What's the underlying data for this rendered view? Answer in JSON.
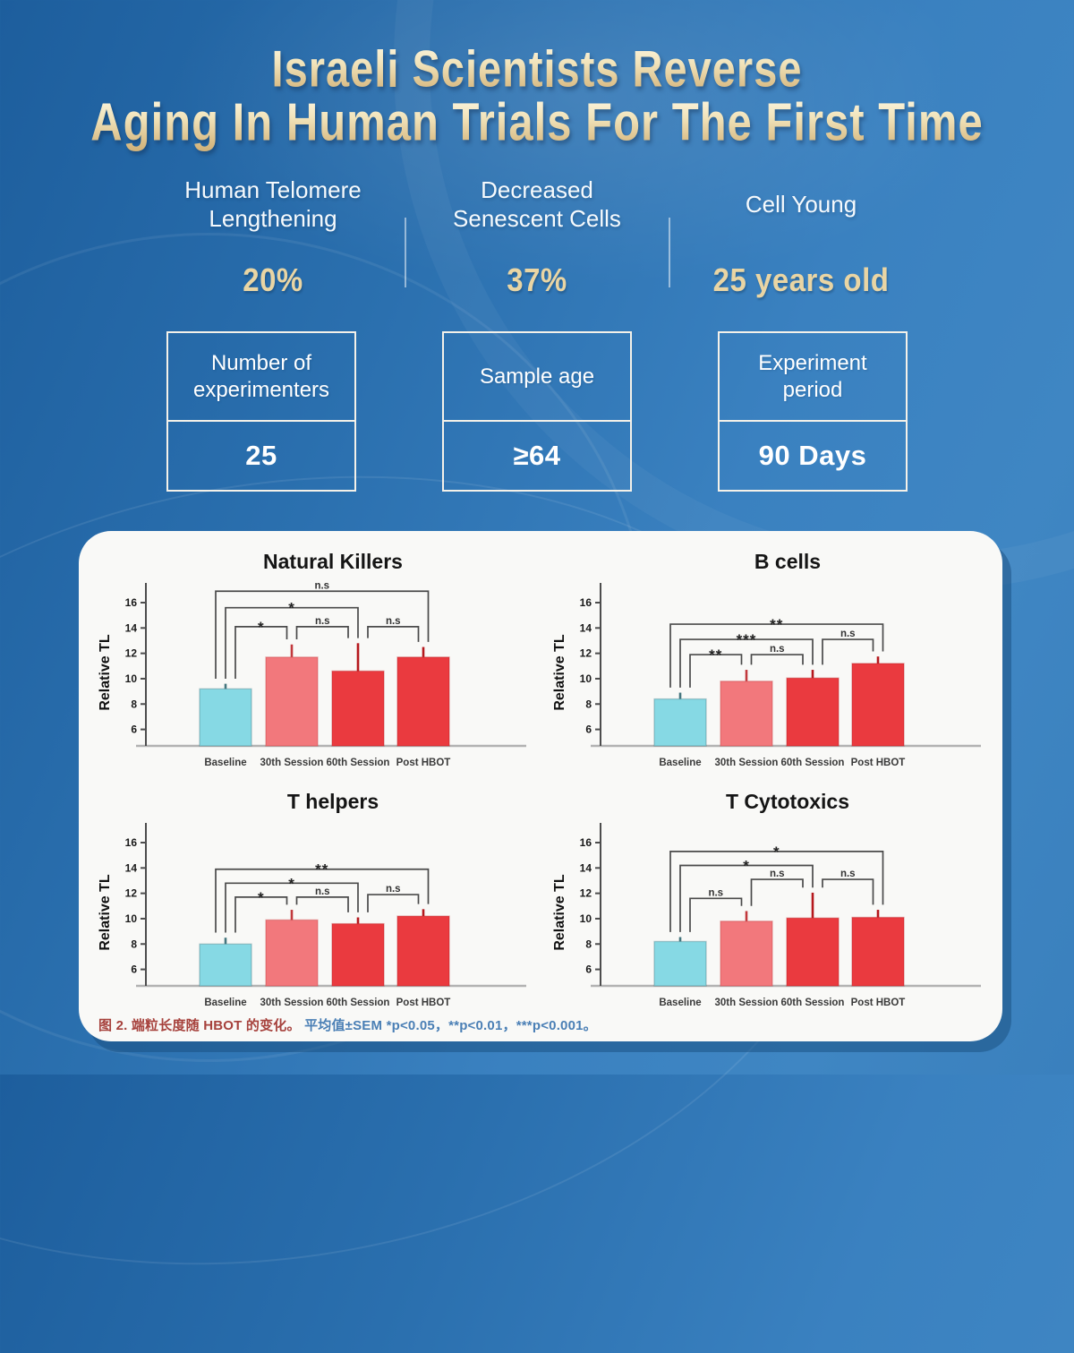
{
  "title": {
    "line1": "Israeli Scientists Reverse",
    "line2": "Aging In Human Trials For The First Time"
  },
  "stats": [
    {
      "label": "Human Telomere\nLengthening",
      "value": "20%"
    },
    {
      "label": "Decreased\nSenescent Cells",
      "value": "37%"
    },
    {
      "label": "Cell Young",
      "value": "25 years old"
    }
  ],
  "info_boxes": [
    {
      "label": "Number of\nexperimenters",
      "value": "25"
    },
    {
      "label": "Sample age",
      "value": "≥64"
    },
    {
      "label": "Experiment\nperiod",
      "value": "90 Days"
    }
  ],
  "caption": {
    "figure": "图 2. 端粒长度随 HBOT 的变化。",
    "stats_note": "平均值±SEM *p<0.05，**p<0.01，***p<0.001。"
  },
  "colors": {
    "background_top_left": "#1d5e9d",
    "background_right": "#3f86c3",
    "title_gold": "#e9d5a4",
    "panel_background": "#f9f9f7",
    "panel_shadow": "#16507e",
    "bar_baseline": "#86d9e4",
    "bar_session_30": "#f2787c",
    "bar_session_60": "#ea3a3f",
    "bar_post_hbot": "#ea3a3f",
    "caption_red": "#a6413c",
    "caption_blue": "#4a7fb5"
  },
  "chart_data": [
    {
      "type": "bar",
      "title": "Natural Killers",
      "ylabel": "Relative TL",
      "categories": [
        "Baseline",
        "30th Session",
        "60th Session",
        "Post HBOT"
      ],
      "values": [
        9.2,
        11.7,
        10.6,
        11.7
      ],
      "errors": [
        0.4,
        1.0,
        2.2,
        0.8
      ],
      "yticks": [
        6,
        8,
        10,
        12,
        14,
        16
      ],
      "ylim": [
        4.7,
        18.4
      ],
      "grid": false,
      "bar_colors": [
        "#86d9e4",
        "#f2787c",
        "#ea3a3f",
        "#ea3a3f"
      ],
      "error_colors": [
        "#44757e",
        "#c2393d",
        "#b5181d",
        "#b5181d"
      ],
      "brackets": [
        {
          "pair": [
            0,
            1
          ],
          "label": "*",
          "y": 14.1
        },
        {
          "pair": [
            1,
            2
          ],
          "label": "n.s",
          "y": 14.1
        },
        {
          "pair": [
            2,
            3
          ],
          "label": "n.s",
          "y": 14.1
        },
        {
          "pair": [
            0,
            2
          ],
          "label": "*",
          "y": 15.6
        },
        {
          "pair": [
            0,
            3
          ],
          "label": "n.s",
          "y": 16.9
        }
      ]
    },
    {
      "type": "bar",
      "title": "B cells",
      "ylabel": "Relative TL",
      "categories": [
        "Baseline",
        "30th Session",
        "60th Session",
        "Post HBOT"
      ],
      "values": [
        8.4,
        9.8,
        10.05,
        11.2
      ],
      "errors": [
        0.5,
        0.9,
        0.65,
        0.55
      ],
      "yticks": [
        6,
        8,
        10,
        12,
        14,
        16
      ],
      "ylim": [
        4.7,
        18.4
      ],
      "grid": false,
      "bar_colors": [
        "#86d9e4",
        "#f2787c",
        "#ea3a3f",
        "#ea3a3f"
      ],
      "error_colors": [
        "#44757e",
        "#c2393d",
        "#b5181d",
        "#b5181d"
      ],
      "brackets": [
        {
          "pair": [
            0,
            1
          ],
          "label": "**",
          "y": 11.9
        },
        {
          "pair": [
            1,
            2
          ],
          "label": "n.s",
          "y": 11.9
        },
        {
          "pair": [
            0,
            2
          ],
          "label": "***",
          "y": 13.1
        },
        {
          "pair": [
            2,
            3
          ],
          "label": "n.s",
          "y": 13.1
        },
        {
          "pair": [
            0,
            3
          ],
          "label": "**",
          "y": 14.3
        }
      ]
    },
    {
      "type": "bar",
      "title": "T helpers",
      "ylabel": "Relative TL",
      "categories": [
        "Baseline",
        "30th Session",
        "60th Session",
        "Post HBOT"
      ],
      "values": [
        8.0,
        9.9,
        9.6,
        10.2
      ],
      "errors": [
        0.5,
        0.8,
        0.5,
        0.55
      ],
      "yticks": [
        6,
        8,
        10,
        12,
        14,
        16
      ],
      "ylim": [
        4.7,
        18.4
      ],
      "grid": false,
      "bar_colors": [
        "#86d9e4",
        "#f2787c",
        "#ea3a3f",
        "#ea3a3f"
      ],
      "error_colors": [
        "#44757e",
        "#c2393d",
        "#b5181d",
        "#b5181d"
      ],
      "brackets": [
        {
          "pair": [
            0,
            1
          ],
          "label": "*",
          "y": 11.7
        },
        {
          "pair": [
            1,
            2
          ],
          "label": "n.s",
          "y": 11.7
        },
        {
          "pair": [
            2,
            3
          ],
          "label": "n.s",
          "y": 11.9
        },
        {
          "pair": [
            0,
            2
          ],
          "label": "*",
          "y": 12.8
        },
        {
          "pair": [
            0,
            3
          ],
          "label": "**",
          "y": 13.9
        }
      ]
    },
    {
      "type": "bar",
      "title": "T Cytotoxics",
      "ylabel": "Relative TL",
      "categories": [
        "Baseline",
        "30th Session",
        "60th Session",
        "Post HBOT"
      ],
      "values": [
        8.2,
        9.8,
        10.05,
        10.1
      ],
      "errors": [
        0.35,
        0.8,
        2.0,
        0.6
      ],
      "yticks": [
        6,
        8,
        10,
        12,
        14,
        16
      ],
      "ylim": [
        4.7,
        18.4
      ],
      "grid": false,
      "bar_colors": [
        "#86d9e4",
        "#f2787c",
        "#ea3a3f",
        "#ea3a3f"
      ],
      "error_colors": [
        "#44757e",
        "#c2393d",
        "#b5181d",
        "#b5181d"
      ],
      "brackets": [
        {
          "pair": [
            0,
            1
          ],
          "label": "n.s",
          "y": 11.6
        },
        {
          "pair": [
            1,
            2
          ],
          "label": "n.s",
          "y": 13.1
        },
        {
          "pair": [
            2,
            3
          ],
          "label": "n.s",
          "y": 13.1
        },
        {
          "pair": [
            0,
            2
          ],
          "label": "*",
          "y": 14.2
        },
        {
          "pair": [
            0,
            3
          ],
          "label": "*",
          "y": 15.3
        }
      ]
    }
  ]
}
